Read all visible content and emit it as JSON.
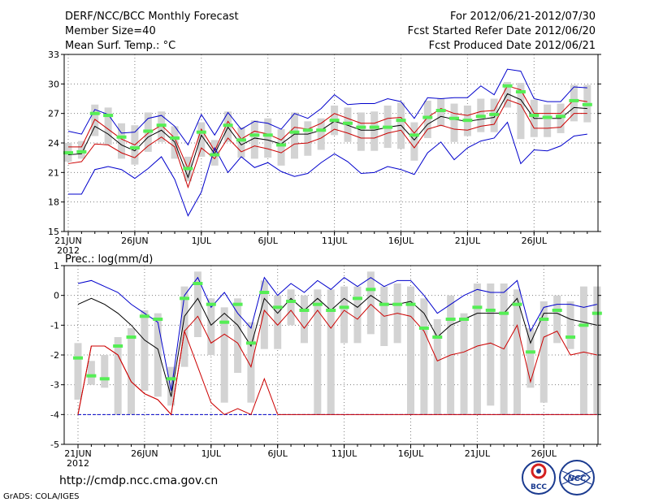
{
  "header": {
    "title": "DERF/NCC/BCC Monthly Forecast",
    "member_size": "Member Size=40",
    "variable": "Mean Surf. Temp.: °C",
    "period": "For 2012/06/21-2012/07/30",
    "fcst_started": "Fcst Started Refer Date 2012/06/20",
    "fcst_produced": "Fcst Produced Date 2012/06/21"
  },
  "footer": {
    "url": "http://cmdp.ncc.cma.gov.cn",
    "grads": "GrADS: COLA/IGES",
    "logo_bcc": "BCC",
    "logo_ncc": "NCC"
  },
  "colors": {
    "ensemble_bar": "#d3d3d3",
    "observation": "#55ee55",
    "envelope": "#0000cc",
    "spread": "#cc0000",
    "mean": "#000000",
    "grid": "#7f7f7f"
  },
  "chart_data": [
    {
      "type": "line",
      "title": "Mean Surf. Temp.: °C",
      "xlabel": "",
      "ylabel": "Mean Surf. Temp. (°C)",
      "ylim": [
        15,
        33
      ],
      "yticks": [
        15,
        18,
        21,
        24,
        27,
        30,
        33
      ],
      "xticks": [
        {
          "day": 1,
          "label": "21JUN"
        },
        {
          "day": 6,
          "label": "26JUN"
        },
        {
          "day": 11,
          "label": "1JUL"
        },
        {
          "day": 16,
          "label": "6JUL"
        },
        {
          "day": 21,
          "label": "11JUL"
        },
        {
          "day": 26,
          "label": "16JUL"
        },
        {
          "day": 31,
          "label": "21JUL"
        },
        {
          "day": 36,
          "label": "26JUL"
        }
      ],
      "xsublabel": "2012",
      "days": [
        1,
        2,
        3,
        4,
        5,
        6,
        7,
        8,
        9,
        10,
        11,
        12,
        13,
        14,
        15,
        16,
        17,
        18,
        19,
        20,
        21,
        22,
        23,
        24,
        25,
        26,
        27,
        28,
        29,
        30,
        31,
        32,
        33,
        34,
        35,
        36,
        37,
        38,
        39,
        40
      ],
      "series": [
        {
          "name": "max",
          "color": "#0000cc",
          "values": [
            25.2,
            24.9,
            27.4,
            26.9,
            25.0,
            25.1,
            26.5,
            26.8,
            25.7,
            23.8,
            26.9,
            24.8,
            27.1,
            25.4,
            26.2,
            26.0,
            25.4,
            27.0,
            26.5,
            27.5,
            28.9,
            27.9,
            28.0,
            28.0,
            28.5,
            28.2,
            26.5,
            28.6,
            28.5,
            28.6,
            28.6,
            29.8,
            28.9,
            31.5,
            31.3,
            28.5,
            28.2,
            28.2,
            29.7,
            29.6
          ]
        },
        {
          "name": "upper_spread",
          "color": "#cc0000",
          "values": [
            23.6,
            23.6,
            26.4,
            25.4,
            24.4,
            23.8,
            25.0,
            25.8,
            24.5,
            21.4,
            25.4,
            23.2,
            26.2,
            24.4,
            25.2,
            24.9,
            24.3,
            25.6,
            25.4,
            26.0,
            27.0,
            26.5,
            26.0,
            26.0,
            26.5,
            26.6,
            25.0,
            26.6,
            27.5,
            27.0,
            26.8,
            27.2,
            27.3,
            29.8,
            29.4,
            27.0,
            27.0,
            27.0,
            28.4,
            28.2
          ]
        },
        {
          "name": "mean",
          "color": "#000000",
          "values": [
            22.8,
            22.9,
            25.7,
            24.9,
            23.8,
            23.2,
            24.6,
            25.3,
            24.1,
            20.5,
            24.8,
            22.9,
            25.6,
            23.8,
            24.5,
            24.3,
            23.9,
            24.9,
            24.9,
            25.3,
            26.2,
            25.8,
            25.3,
            25.3,
            25.6,
            25.8,
            24.3,
            25.9,
            26.7,
            26.4,
            26.2,
            26.4,
            26.6,
            29.0,
            28.4,
            26.5,
            26.5,
            26.5,
            27.6,
            27.5
          ]
        },
        {
          "name": "lower_spread",
          "color": "#cc0000",
          "values": [
            21.9,
            22.1,
            23.9,
            23.8,
            23.0,
            22.5,
            23.7,
            24.6,
            23.6,
            19.5,
            23.5,
            22.4,
            24.5,
            23.1,
            23.7,
            23.4,
            23.0,
            23.9,
            24.0,
            24.5,
            25.4,
            25.0,
            24.5,
            24.5,
            25.0,
            25.3,
            23.5,
            25.4,
            25.8,
            25.4,
            25.3,
            25.7,
            25.9,
            28.4,
            27.9,
            25.5,
            25.5,
            25.6,
            27.0,
            27.0
          ]
        },
        {
          "name": "min",
          "color": "#0000cc",
          "values": [
            18.8,
            18.8,
            21.3,
            21.6,
            21.3,
            20.4,
            21.4,
            22.6,
            20.3,
            16.6,
            19.0,
            23.5,
            21.0,
            22.6,
            21.5,
            22.0,
            21.1,
            20.6,
            20.9,
            22.0,
            22.9,
            22.1,
            20.9,
            21.0,
            21.6,
            21.3,
            20.8,
            23.0,
            24.1,
            22.3,
            23.5,
            24.2,
            24.5,
            26.1,
            21.9,
            23.3,
            23.2,
            23.7,
            24.7,
            24.9
          ]
        },
        {
          "name": "observed",
          "color": "#55ee55",
          "values": [
            23.0,
            23.1,
            27.0,
            26.8,
            24.6,
            23.5,
            25.2,
            25.8,
            24.5,
            21.4,
            25.1,
            22.8,
            25.8,
            24.3,
            24.8,
            24.8,
            23.8,
            25.1,
            25.3,
            25.3,
            26.3,
            26.0,
            25.6,
            25.6,
            25.6,
            26.3,
            24.8,
            26.6,
            27.3,
            26.5,
            26.3,
            26.7,
            26.9,
            29.8,
            29.2,
            26.8,
            26.6,
            26.7,
            28.3,
            27.9
          ]
        },
        {
          "name": "ensemble_box_high",
          "color": "#d3d3d3",
          "values": [
            24.0,
            24.2,
            27.9,
            27.6,
            26.0,
            25.8,
            27.1,
            27.2,
            25.7,
            22.6,
            26.1,
            24.3,
            27.2,
            25.6,
            26.3,
            26.5,
            25.4,
            27.1,
            26.2,
            26.5,
            27.8,
            27.6,
            27.1,
            27.2,
            27.8,
            28.1,
            26.1,
            28.3,
            28.5,
            28.0,
            27.8,
            28.5,
            28.5,
            30.2,
            30.1,
            28.4,
            27.9,
            28.0,
            29.9,
            29.9
          ]
        },
        {
          "name": "ensemble_box_low",
          "color": "#d3d3d3",
          "values": [
            22.1,
            22.4,
            24.7,
            23.8,
            22.4,
            21.8,
            23.1,
            24.1,
            22.4,
            20.1,
            22.6,
            21.7,
            24.1,
            22.5,
            22.4,
            22.5,
            21.7,
            22.4,
            22.7,
            23.3,
            24.8,
            24.1,
            23.2,
            23.2,
            23.5,
            23.4,
            22.2,
            24.5,
            25.7,
            24.1,
            24.7,
            25.1,
            25.1,
            27.6,
            24.4,
            24.6,
            24.6,
            25.0,
            26.2,
            26.1
          ]
        }
      ]
    },
    {
      "type": "line",
      "title": "Prec.: log(mm/d)",
      "xlabel": "",
      "ylabel": "Prec. log(mm/d)",
      "ylim": [
        -5,
        1
      ],
      "yticks": [
        -5,
        -4,
        -3,
        -2,
        -1,
        0,
        1
      ],
      "xticks": [
        {
          "day": 1,
          "label": "21JUN"
        },
        {
          "day": 6,
          "label": "26JUN"
        },
        {
          "day": 11,
          "label": "1JUL"
        },
        {
          "day": 16,
          "label": "6JUL"
        },
        {
          "day": 21,
          "label": "11JUL"
        },
        {
          "day": 26,
          "label": "16JUL"
        },
        {
          "day": 31,
          "label": "21JUL"
        },
        {
          "day": 36,
          "label": "26JUL"
        }
      ],
      "xsublabel": "2012",
      "days": [
        1,
        2,
        3,
        4,
        5,
        6,
        7,
        8,
        9,
        10,
        11,
        12,
        13,
        14,
        15,
        16,
        17,
        18,
        19,
        20,
        21,
        22,
        23,
        24,
        25,
        26,
        27,
        28,
        29,
        30,
        31,
        32,
        33,
        34,
        35,
        36,
        37,
        38,
        39,
        40
      ],
      "series": [
        {
          "name": "max",
          "color": "#0000cc",
          "values": [
            0.4,
            0.5,
            0.3,
            0.1,
            -0.3,
            -0.6,
            -0.9,
            -3.2,
            0.0,
            0.6,
            -0.4,
            0.1,
            -0.6,
            -1.1,
            0.6,
            0.0,
            0.4,
            0.1,
            0.5,
            0.2,
            0.6,
            0.3,
            0.6,
            0.3,
            0.5,
            0.5,
            0.0,
            -0.6,
            -0.3,
            0.0,
            0.2,
            0.1,
            0.1,
            0.5,
            -1.2,
            -0.4,
            -0.3,
            -0.3,
            -0.4,
            -0.3
          ]
        },
        {
          "name": "upper_spread",
          "color": "#cc0000",
          "values": [
            -0.3,
            -0.1,
            -0.3,
            -0.6,
            -1.0,
            -1.5,
            -1.8,
            -3.4,
            -0.7,
            -0.1,
            -1.0,
            -0.6,
            -1.0,
            -1.7,
            -0.1,
            -0.6,
            -0.1,
            -0.5,
            -0.1,
            -0.5,
            -0.1,
            -0.4,
            0.0,
            -0.3,
            -0.3,
            -0.2,
            -0.6,
            -1.4,
            -1.0,
            -0.8,
            -0.6,
            -0.6,
            -0.6,
            -0.1,
            -1.6,
            -0.6,
            -0.6,
            -0.8,
            -0.9,
            -1.0
          ]
        },
        {
          "name": "mean",
          "color": "#000000",
          "values": [
            -0.3,
            -0.1,
            -0.3,
            -0.6,
            -1.0,
            -1.5,
            -1.8,
            -3.4,
            -0.7,
            -0.1,
            -1.0,
            -0.6,
            -1.0,
            -1.7,
            -0.1,
            -0.6,
            -0.1,
            -0.5,
            -0.1,
            -0.5,
            -0.1,
            -0.4,
            0.0,
            -0.3,
            -0.3,
            -0.2,
            -0.6,
            -1.4,
            -1.0,
            -0.8,
            -0.6,
            -0.6,
            -0.6,
            -0.1,
            -1.6,
            -0.6,
            -0.6,
            -0.8,
            -0.9,
            -1.0
          ]
        },
        {
          "name": "lower_spread",
          "color": "#cc0000",
          "values": [
            -4.0,
            -1.7,
            -1.7,
            -2.0,
            -2.9,
            -3.3,
            -3.5,
            -4.0,
            -1.2,
            -0.7,
            -1.6,
            -1.3,
            -1.6,
            -2.4,
            -0.5,
            -1.0,
            -0.5,
            -1.1,
            -0.5,
            -1.1,
            -0.5,
            -0.8,
            -0.3,
            -0.7,
            -0.6,
            -0.7,
            -1.2,
            -2.2,
            -2.0,
            -1.9,
            -1.7,
            -1.6,
            -1.8,
            -1.0,
            -2.9,
            -1.4,
            -1.2,
            -2.0,
            -1.9,
            -2.0
          ]
        },
        {
          "name": "min",
          "color": "#0000cc",
          "values": [
            -4.0,
            -4.0,
            -4.0,
            -4.0,
            -4.0,
            -4.0,
            -4.0,
            -4.0,
            -4.0,
            -4.0,
            -4.0,
            -4.0,
            -4.0,
            -4.0,
            -4.0,
            -4.0,
            -4.0,
            -4.0,
            -4.0,
            -4.0,
            -4.0,
            -4.0,
            -4.0,
            -4.0,
            -4.0,
            -4.0,
            -4.0,
            -4.0,
            -4.0,
            -4.0,
            -4.0,
            -4.0,
            -4.0,
            -4.0,
            -4.0,
            -4.0,
            -4.0,
            -4.0,
            -4.0,
            -4.0
          ]
        },
        {
          "name": "observed",
          "color": "#55ee55",
          "values": [
            -2.1,
            -2.7,
            -2.8,
            -1.7,
            -1.4,
            -0.7,
            -0.8,
            -2.8,
            -0.1,
            0.4,
            -0.3,
            -0.9,
            -0.3,
            -1.6,
            0.1,
            -0.4,
            -0.2,
            -0.5,
            -0.3,
            -0.5,
            -0.4,
            -0.1,
            0.2,
            -0.3,
            -0.3,
            -0.3,
            -1.1,
            -1.4,
            -0.8,
            -0.8,
            -0.4,
            -0.5,
            -0.6,
            -0.3,
            -1.9,
            -0.8,
            -0.5,
            -1.4,
            -1.0,
            -0.6
          ]
        },
        {
          "name": "ensemble_box_high",
          "color": "#d3d3d3",
          "values": [
            -1.6,
            -2.2,
            -2.0,
            -1.4,
            -1.1,
            -0.5,
            -0.6,
            -2.4,
            0.3,
            0.8,
            -0.1,
            -0.4,
            -0.1,
            -0.9,
            0.5,
            0.0,
            0.2,
            0.0,
            0.2,
            0.2,
            0.3,
            0.3,
            0.8,
            0.3,
            0.4,
            0.3,
            -0.1,
            -0.8,
            0.0,
            -0.6,
            0.4,
            0.4,
            0.4,
            0.2,
            -1.1,
            -0.2,
            0.0,
            -0.2,
            0.3,
            0.3
          ]
        },
        {
          "name": "ensemble_box_low",
          "color": "#d3d3d3",
          "values": [
            -3.5,
            -3.0,
            -3.1,
            -4.0,
            -4.0,
            -3.2,
            -3.4,
            -3.7,
            -2.4,
            -1.4,
            -2.0,
            -3.6,
            -2.6,
            -3.6,
            -1.8,
            -1.8,
            -1.0,
            -1.6,
            -4.0,
            -4.0,
            -1.6,
            -1.6,
            -1.3,
            -1.7,
            -1.6,
            -4.0,
            -4.0,
            -4.0,
            -4.0,
            -4.0,
            -4.0,
            -3.7,
            -4.0,
            -4.0,
            -3.1,
            -3.6,
            -1.6,
            -1.8,
            -4.0,
            -4.0
          ]
        }
      ]
    }
  ]
}
